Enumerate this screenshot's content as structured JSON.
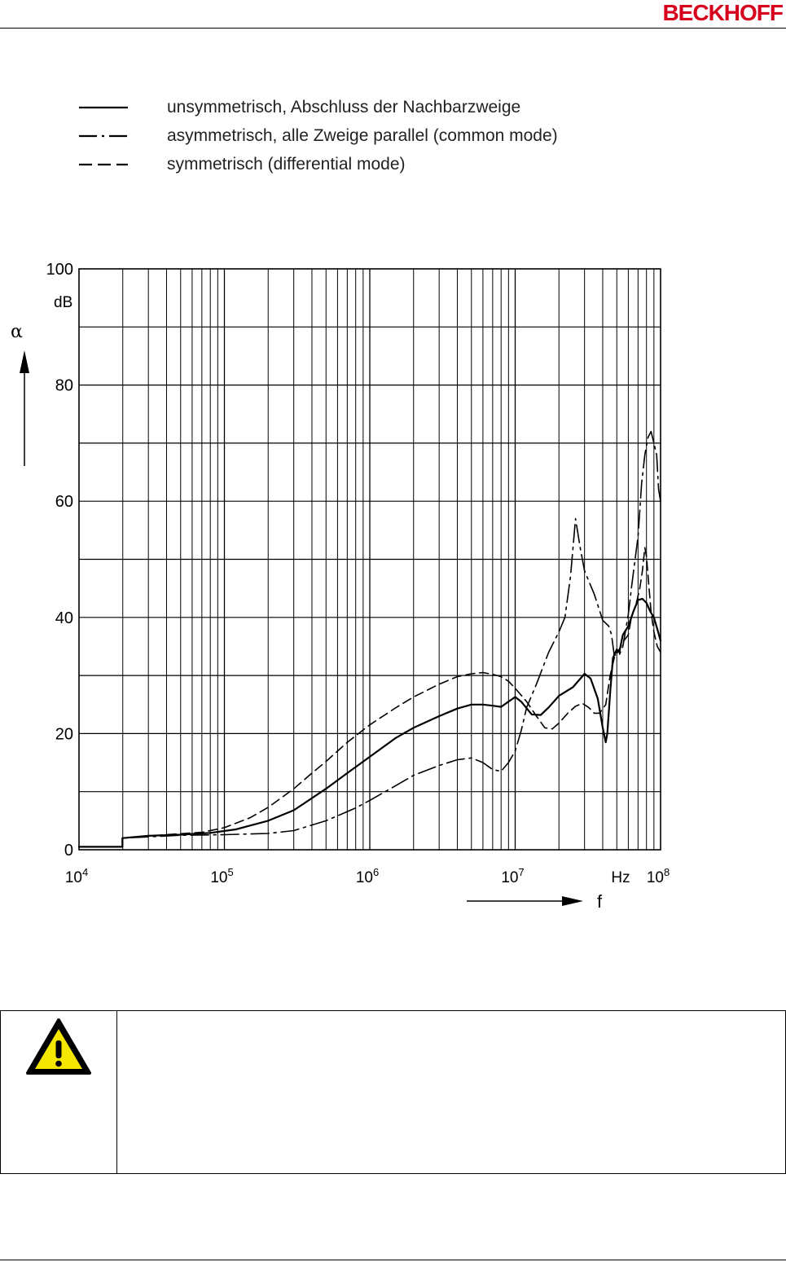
{
  "header": {
    "logo": "BECKHOFF"
  },
  "legend": [
    {
      "style": "solid",
      "label": "unsymmetrisch, Abschluss der Nachbarzweige"
    },
    {
      "style": "dashdot",
      "label": "asymmetrisch, alle Zweige parallel (common mode)"
    },
    {
      "style": "dashed",
      "label": "symmetrisch (differential mode)"
    }
  ],
  "chart_data": {
    "type": "line",
    "x_scale": "log",
    "xlim": [
      10000,
      100000000
    ],
    "ylim": [
      0,
      100
    ],
    "grid": true,
    "y_ticks": [
      {
        "value": 0,
        "label": "0"
      },
      {
        "value": 20,
        "label": "20"
      },
      {
        "value": 40,
        "label": "40"
      },
      {
        "value": 60,
        "label": "60"
      },
      {
        "value": 80,
        "label": "80"
      },
      {
        "value": 100,
        "label": "100"
      }
    ],
    "y_unit": "dB",
    "y_symbol": "α",
    "x_ticks": [
      {
        "value": 10000,
        "base": "10",
        "exp": "4"
      },
      {
        "value": 100000,
        "base": "10",
        "exp": "5"
      },
      {
        "value": 1000000,
        "base": "10",
        "exp": "6"
      },
      {
        "value": 10000000,
        "base": "10",
        "exp": "7"
      },
      {
        "value": 100000000,
        "base": "10",
        "exp": "8"
      }
    ],
    "x_unit": "Hz",
    "x_symbol": "f",
    "series": [
      {
        "name": "unsymmetrisch, Abschluss der Nachbarzweige",
        "style": "solid",
        "x": [
          10000,
          19000,
          20000,
          30000,
          50000,
          80000,
          120000,
          200000,
          300000,
          500000,
          700000,
          1000000,
          1500000,
          2000000,
          3000000,
          4000000,
          5000000,
          6000000,
          7000000,
          8000000,
          9000000,
          10000000,
          11000000,
          13000000,
          15000000,
          17000000,
          20000000,
          25000000,
          30000000,
          33000000,
          37000000,
          40000000,
          42000000,
          43000000,
          45000000,
          47000000,
          50000000,
          52000000,
          55000000,
          60000000,
          65000000,
          70000000,
          75000000,
          80000000,
          85000000,
          90000000,
          95000000,
          100000000
        ],
        "y": [
          0.5,
          0.5,
          2,
          2.4,
          2.6,
          2.9,
          3.5,
          5,
          6.8,
          10.5,
          13.2,
          16,
          19.2,
          21,
          23,
          24.3,
          25,
          25,
          24.8,
          24.6,
          25.5,
          26.3,
          25.5,
          23.3,
          23.2,
          24.5,
          26.5,
          28,
          30.3,
          29.5,
          26,
          21,
          18.5,
          20,
          27,
          33,
          34.5,
          34,
          37,
          38.5,
          41,
          43,
          43.2,
          42.5,
          41,
          40,
          38,
          36
        ]
      },
      {
        "name": "asymmetrisch, alle Zweige parallel (common mode)",
        "style": "dashdot",
        "x": [
          10000,
          19000,
          20000,
          50000,
          100000,
          200000,
          300000,
          500000,
          800000,
          1000000,
          1500000,
          2000000,
          3000000,
          4000000,
          5000000,
          6000000,
          7000000,
          8000000,
          9000000,
          10000000,
          11000000,
          12000000,
          14000000,
          17000000,
          20000000,
          22000000,
          24000000,
          26000000,
          28000000,
          30000000,
          35000000,
          40000000,
          44000000,
          46000000,
          48000000,
          52000000,
          55000000,
          60000000,
          63000000,
          66000000,
          70000000,
          74000000,
          78000000,
          82000000,
          86000000,
          90000000,
          94000000,
          97000000,
          100000000
        ],
        "y": [
          0.5,
          0.5,
          2,
          2.5,
          2.6,
          2.8,
          3.3,
          5,
          7.2,
          8.5,
          11,
          12.8,
          14.5,
          15.5,
          15.8,
          15,
          13.8,
          13.5,
          15,
          17,
          20.5,
          24.5,
          28.5,
          34,
          37.5,
          40,
          47,
          57,
          52,
          48,
          44,
          39.5,
          38.5,
          37,
          33.5,
          33.5,
          35,
          40.5,
          45,
          49,
          54,
          63,
          68,
          71,
          72,
          70,
          68,
          62,
          60
        ]
      },
      {
        "name": "symmetrisch (differential mode)",
        "style": "dashed",
        "x": [
          10000,
          19000,
          20000,
          40000,
          70000,
          100000,
          150000,
          200000,
          300000,
          400000,
          500000,
          700000,
          1000000,
          1500000,
          2000000,
          3000000,
          4000000,
          5000000,
          6000000,
          7000000,
          8000000,
          9000000,
          10000000,
          12000000,
          14000000,
          16000000,
          18000000,
          20000000,
          23000000,
          26000000,
          29000000,
          32000000,
          35000000,
          38000000,
          42000000,
          45000000,
          48000000,
          52000000,
          56000000,
          60000000,
          63000000,
          66000000,
          69000000,
          72000000,
          75000000,
          78000000,
          80000000,
          83000000,
          86000000,
          90000000,
          95000000,
          100000000
        ],
        "y": [
          0.5,
          0.5,
          2,
          2.6,
          3,
          3.8,
          5.5,
          7.3,
          10.5,
          13.2,
          15.2,
          18.5,
          21.5,
          24.4,
          26.3,
          28.5,
          29.8,
          30.3,
          30.5,
          30.2,
          29.8,
          29,
          27.8,
          25.5,
          23,
          21,
          20.8,
          21.8,
          23.5,
          24.7,
          25.2,
          24.5,
          23.5,
          23.5,
          25,
          30,
          33,
          34.5,
          36,
          37,
          40,
          41.5,
          43,
          45,
          48,
          52,
          50.5,
          45.5,
          41,
          37.5,
          35,
          34
        ]
      }
    ]
  },
  "warning": {
    "icon": "warning-triangle-icon",
    "text": ""
  }
}
